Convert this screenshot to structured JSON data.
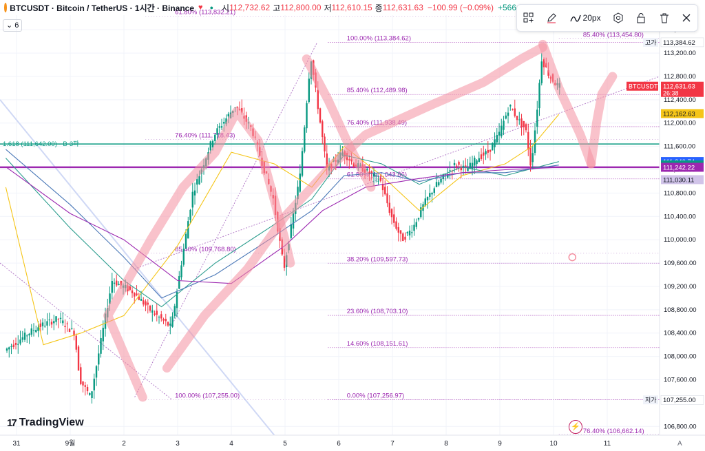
{
  "header": {
    "title": "BTCUSDT · Bitcoin / TetherUS · 1시간 · Binance",
    "favorite_icon": "heart-icon",
    "open_label": "시",
    "open": "112,732.62",
    "high_label": "고",
    "high": "112,800.00",
    "low_label": "저",
    "low": "112,610.15",
    "close_label": "종",
    "close": "112,631.63",
    "change": "−100.99 (−0.09%)",
    "volume": "+566..."
  },
  "indicators": {
    "count": "6"
  },
  "toolbar": {
    "size_label": "20px",
    "icons": [
      "grid-plus-icon",
      "pencil-icon",
      "line-style-icon",
      "settings-icon",
      "lock-icon",
      "trash-icon",
      "close-icon"
    ]
  },
  "brand": "TradingView",
  "colors": {
    "up": "#089981",
    "down": "#f23645",
    "fib": "#9c27b0",
    "ext": "#089981",
    "highlight": "#f48fa0",
    "ma_yellow": "#f5c518",
    "ma_green": "#2e9e8f",
    "ma_blue": "#4a78b7",
    "ma_purple": "#9c27b0"
  },
  "chart_data": {
    "type": "candlestick",
    "symbol": "BTCUSDT",
    "ylim": [
      106650,
      113850
    ],
    "y_ticks": [
      106800,
      107600,
      108000,
      108400,
      108800,
      109200,
      109600,
      110000,
      110400,
      110800,
      111200,
      111600,
      112000,
      112400,
      112800,
      113200,
      113600
    ],
    "y_tick_labels": [
      "106,800.00",
      "107,600.00",
      "108,000.00",
      "108,400.00",
      "108,800.00",
      "109,200.00",
      "109,600.00",
      "110,000.00",
      "110,400.00",
      "110,800.00",
      "111,200.00",
      "111,600.00",
      "112,000.00",
      "112,400.00",
      "112,800.00",
      "113,200.00",
      "113,600.00"
    ],
    "x_labels": [
      "31",
      "9월",
      "2",
      "3",
      "4",
      "5",
      "6",
      "7",
      "8",
      "9",
      "10",
      "11"
    ],
    "x_label_days": [
      -0.5,
      0.5,
      1.5,
      2.5,
      3.5,
      4.5,
      5.5,
      6.5,
      7.5,
      8.5,
      9.5,
      10.5
    ],
    "path_days": [
      -0.7,
      -0.1,
      0.3,
      0.6,
      0.7,
      0.9,
      1.3,
      1.7,
      2.0,
      2.4,
      2.8,
      3.2,
      3.6,
      3.9,
      4.3,
      4.5,
      4.8,
      5.0,
      5.3,
      5.6,
      5.8,
      6.0,
      6.3,
      6.5,
      6.7,
      6.9,
      7.1,
      7.3,
      7.5,
      7.7,
      7.9,
      8.1,
      8.3,
      8.5,
      8.7,
      8.9,
      9.0,
      9.1,
      9.2,
      9.3,
      9.45,
      9.6
    ],
    "path_prices": [
      108100,
      108500,
      108650,
      108400,
      107600,
      107300,
      109300,
      109100,
      108800,
      108500,
      110800,
      111800,
      112300,
      111900,
      110700,
      109500,
      111100,
      113150,
      111200,
      111500,
      111300,
      111200,
      111000,
      110400,
      110000,
      110200,
      110600,
      110900,
      111100,
      111300,
      111200,
      111400,
      111500,
      111800,
      112300,
      112000,
      111900,
      111250,
      112100,
      113100,
      112800,
      112631.63
    ],
    "ma_series": [
      {
        "color_key": "ma_yellow",
        "points": [
          [
            -0.7,
            110900
          ],
          [
            0.0,
            108200
          ],
          [
            0.7,
            108400
          ],
          [
            1.5,
            108700
          ],
          [
            2.5,
            109900
          ],
          [
            3.5,
            111500
          ],
          [
            4.3,
            111300
          ],
          [
            5.0,
            110900
          ],
          [
            5.6,
            111600
          ],
          [
            6.3,
            111100
          ],
          [
            7.0,
            110500
          ],
          [
            7.8,
            111100
          ],
          [
            8.6,
            111300
          ],
          [
            9.1,
            111600
          ],
          [
            9.6,
            112150
          ]
        ]
      },
      {
        "color_key": "ma_green",
        "points": [
          [
            -0.7,
            111400
          ],
          [
            0.5,
            110200
          ],
          [
            1.5,
            109300
          ],
          [
            2.2,
            108850
          ],
          [
            3.2,
            109600
          ],
          [
            4.2,
            110200
          ],
          [
            5.0,
            110700
          ],
          [
            5.6,
            111450
          ],
          [
            6.3,
            111300
          ],
          [
            7.0,
            110950
          ],
          [
            7.8,
            111250
          ],
          [
            8.6,
            111100
          ],
          [
            9.6,
            111340
          ]
        ]
      },
      {
        "color_key": "ma_blue",
        "points": [
          [
            -0.7,
            111550
          ],
          [
            0.5,
            110600
          ],
          [
            1.5,
            109700
          ],
          [
            2.2,
            109000
          ],
          [
            3.2,
            109400
          ],
          [
            4.2,
            110000
          ],
          [
            5.0,
            110500
          ],
          [
            5.6,
            111100
          ],
          [
            6.3,
            111150
          ],
          [
            7.0,
            111000
          ],
          [
            7.8,
            111150
          ],
          [
            8.6,
            111150
          ],
          [
            9.6,
            111280
          ]
        ]
      },
      {
        "color_key": "ma_purple",
        "points": [
          [
            -0.7,
            111250
          ],
          [
            0.5,
            110450
          ],
          [
            1.5,
            110000
          ],
          [
            2.5,
            109300
          ],
          [
            3.5,
            109250
          ],
          [
            4.5,
            109900
          ],
          [
            5.2,
            110500
          ],
          [
            6.0,
            110900
          ],
          [
            7.0,
            111050
          ],
          [
            7.8,
            111150
          ],
          [
            8.6,
            111200
          ],
          [
            9.6,
            111240
          ]
        ]
      }
    ],
    "fib_levels": [
      {
        "label": "100.00% (113,384.62)",
        "price": 113384.62
      },
      {
        "label": "85.40% (112,489.98)",
        "price": 112489.98
      },
      {
        "label": "76.40% (111,938.49)",
        "price": 111938.49
      },
      {
        "label": "61.80% (111,043.86)",
        "price": 111043.86
      },
      {
        "label": "38.20% (109,597.73)",
        "price": 109597.73
      },
      {
        "label": "23.60% (108,703.10)",
        "price": 108703.1
      },
      {
        "label": "14.60% (108,151.61)",
        "price": 108151.61
      },
      {
        "label": "0.00% (107,256.97)",
        "price": 107256.97
      }
    ],
    "fib_left": [
      {
        "label": "61.80% (113,832.21)",
        "price": 113832.21
      },
      {
        "label": "76.40% (111,718.43)",
        "price": 111718.43
      },
      {
        "label": "85.40% (109,768.80)",
        "price": 109768.8
      },
      {
        "label": "100.00% (107,255.00)",
        "price": 107255.0
      }
    ],
    "fib_right": [
      {
        "label": "85.40% (113,454.80)",
        "price": 113454.8
      },
      {
        "label": "76.40% (106,662.14)",
        "price": 106662.14
      }
    ],
    "extension_line": {
      "label": "1.618 (111,642.00) · B-3파",
      "price": 111642.0
    },
    "purple_line": {
      "price": 111242.22
    },
    "price_badges": [
      {
        "text": "113,384.62",
        "price": 113384.62,
        "bg": "#ffffff",
        "fg": "#131722",
        "tag": "고가"
      },
      {
        "text": "112,631.63",
        "sub": "26:38",
        "price": 112631.63,
        "bg": "#f23645",
        "fg": "#ffffff",
        "tag": "BTCUSDT"
      },
      {
        "text": "112,162.63",
        "price": 112162.63,
        "bg": "#f5c518",
        "fg": "#131722"
      },
      {
        "text": "111,340.74",
        "price": 111340.74,
        "bg": "#2962ff",
        "fg": "#ffffff"
      },
      {
        "text": "111,283.69",
        "price": 111283.69,
        "bg": "#089981",
        "fg": "#ffffff"
      },
      {
        "text": "111,242.22",
        "price": 111242.22,
        "bg": "#9c27b0",
        "fg": "#ffffff"
      },
      {
        "text": "111,030.11",
        "price": 111030.11,
        "bg": "#d1c4e9",
        "fg": "#131722"
      },
      {
        "text": "107,255.00",
        "price": 107255.0,
        "bg": "#ffffff",
        "fg": "#131722",
        "tag": "저가"
      }
    ],
    "highlight_strokes": [
      [
        [
          1.85,
          107300
        ],
        [
          1.2,
          108700
        ],
        [
          2.0,
          110000
        ],
        [
          2.6,
          110900
        ],
        [
          3.2,
          111500
        ],
        [
          3.6,
          112200
        ],
        [
          4.0,
          111700
        ],
        [
          4.5,
          110000
        ],
        [
          4.6,
          109600
        ]
      ],
      [
        [
          2.3,
          107800
        ],
        [
          3.0,
          108700
        ],
        [
          3.8,
          109500
        ],
        [
          4.5,
          110400
        ],
        [
          5.4,
          111300
        ],
        [
          6.0,
          111800
        ],
        [
          7.2,
          112300
        ],
        [
          8.2,
          112700
        ],
        [
          8.9,
          113100
        ],
        [
          9.3,
          113300
        ]
      ],
      [
        [
          9.3,
          113350
        ],
        [
          9.6,
          112600
        ],
        [
          10.0,
          111800
        ],
        [
          10.2,
          111300
        ]
      ],
      [
        [
          10.2,
          111300
        ],
        [
          10.3,
          112000
        ],
        [
          10.4,
          112500
        ],
        [
          10.6,
          112800
        ]
      ],
      [
        [
          4.9,
          113100
        ],
        [
          5.3,
          112400
        ],
        [
          5.7,
          111600
        ],
        [
          6.1,
          110900
        ]
      ]
    ]
  }
}
